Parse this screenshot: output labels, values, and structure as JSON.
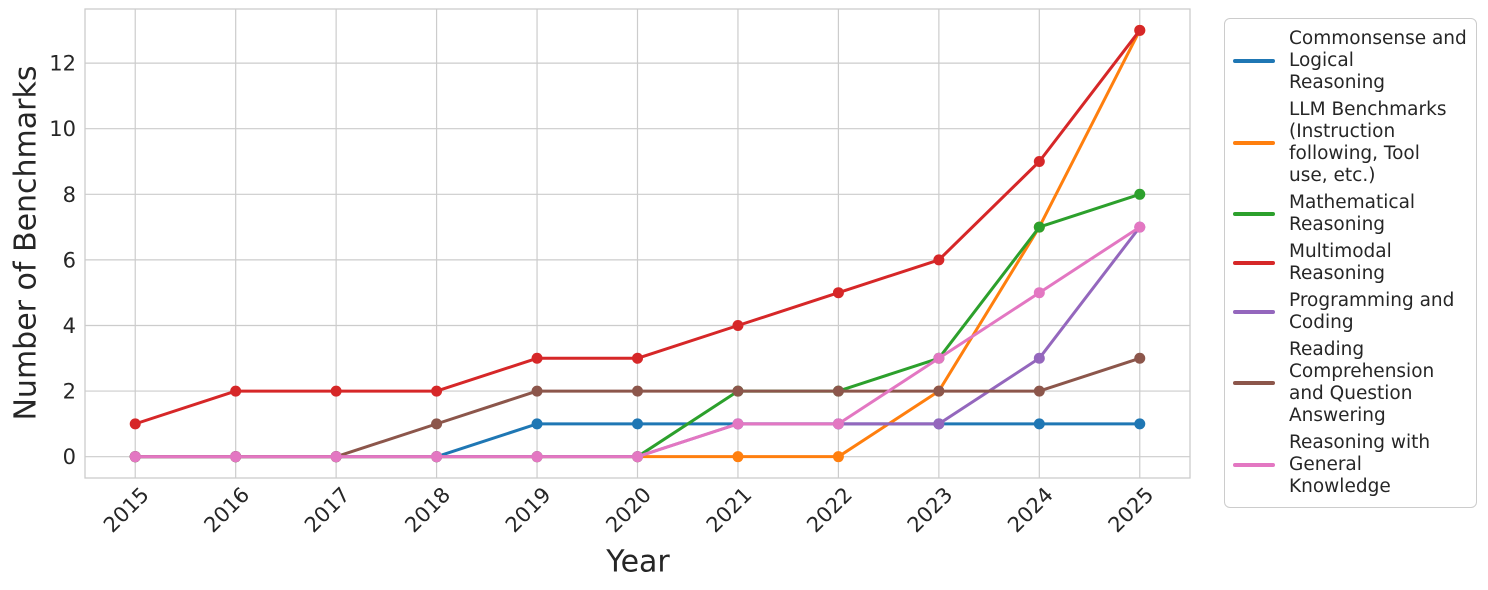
{
  "chart_data": {
    "type": "line",
    "x": [
      2015,
      2016,
      2017,
      2018,
      2019,
      2020,
      2021,
      2022,
      2023,
      2024,
      2025
    ],
    "series": [
      {
        "name": "Commonsense and Logical Reasoning",
        "label_lines": [
          "Commonsense and",
          "Logical",
          "Reasoning"
        ],
        "color": "#1f77b4",
        "values": [
          0,
          0,
          0,
          0,
          1,
          1,
          1,
          1,
          1,
          1,
          1
        ]
      },
      {
        "name": "LLM Benchmarks (Instruction following, Tool use, etc.)",
        "label_lines": [
          "LLM Benchmarks",
          "(Instruction",
          "following, Tool",
          "use, etc.)"
        ],
        "color": "#ff7f0e",
        "values": [
          0,
          0,
          0,
          0,
          0,
          0,
          0,
          0,
          2,
          7,
          13
        ]
      },
      {
        "name": "Mathematical Reasoning",
        "label_lines": [
          "Mathematical",
          "Reasoning"
        ],
        "color": "#2ca02c",
        "values": [
          0,
          0,
          0,
          0,
          0,
          0,
          2,
          2,
          3,
          7,
          8
        ]
      },
      {
        "name": "Multimodal Reasoning",
        "label_lines": [
          "Multimodal",
          "Reasoning"
        ],
        "color": "#d62728",
        "values": [
          1,
          2,
          2,
          2,
          3,
          3,
          4,
          5,
          6,
          9,
          13
        ]
      },
      {
        "name": "Programming and Coding",
        "label_lines": [
          "Programming and",
          "Coding"
        ],
        "color": "#9467bd",
        "values": [
          0,
          0,
          0,
          0,
          0,
          0,
          1,
          1,
          1,
          3,
          7
        ]
      },
      {
        "name": "Reading Comprehension and Question Answering",
        "label_lines": [
          "Reading",
          "Comprehension",
          "and Question",
          "Answering"
        ],
        "color": "#8c564b",
        "values": [
          0,
          0,
          0,
          1,
          2,
          2,
          2,
          2,
          2,
          2,
          3
        ]
      },
      {
        "name": "Reasoning with General Knowledge",
        "label_lines": [
          "Reasoning with",
          "General",
          "Knowledge"
        ],
        "color": "#e377c2",
        "values": [
          0,
          0,
          0,
          0,
          0,
          0,
          1,
          1,
          3,
          5,
          7
        ]
      }
    ],
    "title": "",
    "xlabel": "Year",
    "ylabel": "Number of Benchmarks",
    "yticks": [
      0,
      2,
      4,
      6,
      8,
      10,
      12
    ],
    "xlim": [
      2014.5,
      2025.5
    ],
    "ylim": [
      -0.65,
      13.65
    ],
    "grid": true,
    "legend_position": "right",
    "grid_color": "#cccccc",
    "text_color": "#262626"
  }
}
